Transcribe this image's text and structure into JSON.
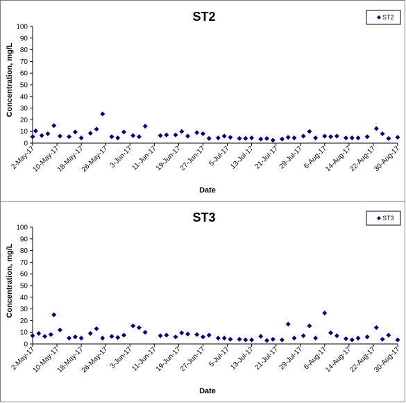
{
  "chart_data": [
    {
      "type": "scatter",
      "title": "ST2",
      "xlabel": "Date",
      "ylabel": "Concentration, mg/L",
      "ylim": [
        0,
        100
      ],
      "yticks": [
        "0",
        "10",
        "20",
        "30",
        "40",
        "50",
        "60",
        "70",
        "80",
        "90",
        "100"
      ],
      "xticks": [
        "2-May-17",
        "10-May-17",
        "18-May-17",
        "26-May-17",
        "3-Jun-17",
        "11-Jun-17",
        "19-Jun-17",
        "27-Jun-17",
        "5-Jul-17",
        "13-Jul-17",
        "21-Jul-17",
        "29-Jul-17",
        "6-Aug-17",
        "14-Aug-17",
        "22-Aug-17",
        "30-Aug-17"
      ],
      "legend": "top-right",
      "color": "#00007f",
      "series": [
        {
          "name": "ST2",
          "points": [
            [
              "2-May-17",
              5.5
            ],
            [
              "3-May-17",
              10.5
            ],
            [
              "5-May-17",
              6.5
            ],
            [
              "7-May-17",
              8
            ],
            [
              "9-May-17",
              15
            ],
            [
              "11-May-17",
              6
            ],
            [
              "14-May-17",
              5.5
            ],
            [
              "16-May-17",
              9.5
            ],
            [
              "18-May-17",
              4.5
            ],
            [
              "21-May-17",
              8.5
            ],
            [
              "23-May-17",
              12
            ],
            [
              "25-May-17",
              25
            ],
            [
              "28-May-17",
              5.5
            ],
            [
              "30-May-17",
              4.5
            ],
            [
              "1-Jun-17",
              9.5
            ],
            [
              "4-Jun-17",
              6.5
            ],
            [
              "6-Jun-17",
              5.5
            ],
            [
              "8-Jun-17",
              14.5
            ],
            [
              "13-Jun-17",
              6.5
            ],
            [
              "15-Jun-17",
              7
            ],
            [
              "18-Jun-17",
              7
            ],
            [
              "20-Jun-17",
              10
            ],
            [
              "22-Jun-17",
              6
            ],
            [
              "25-Jun-17",
              9
            ],
            [
              "27-Jun-17",
              8
            ],
            [
              "29-Jun-17",
              4
            ],
            [
              "2-Jul-17",
              4.5
            ],
            [
              "4-Jul-17",
              6
            ],
            [
              "6-Jul-17",
              5
            ],
            [
              "9-Jul-17",
              4
            ],
            [
              "11-Jul-17",
              4
            ],
            [
              "13-Jul-17",
              4.5
            ],
            [
              "16-Jul-17",
              3.5
            ],
            [
              "18-Jul-17",
              4
            ],
            [
              "20-Jul-17",
              2.5
            ],
            [
              "23-Jul-17",
              3.5
            ],
            [
              "25-Jul-17",
              5
            ],
            [
              "27-Jul-17",
              4.5
            ],
            [
              "30-Jul-17",
              6
            ],
            [
              "1-Aug-17",
              10
            ],
            [
              "3-Aug-17",
              4.5
            ],
            [
              "6-Aug-17",
              6
            ],
            [
              "8-Aug-17",
              5.5
            ],
            [
              "10-Aug-17",
              6
            ],
            [
              "13-Aug-17",
              4.5
            ],
            [
              "15-Aug-17",
              4.5
            ],
            [
              "17-Aug-17",
              4.5
            ],
            [
              "20-Aug-17",
              5.5
            ],
            [
              "23-Aug-17",
              12.5
            ],
            [
              "25-Aug-17",
              8
            ],
            [
              "27-Aug-17",
              4
            ],
            [
              "30-Aug-17",
              5
            ]
          ]
        }
      ]
    },
    {
      "type": "scatter",
      "title": "ST3",
      "xlabel": "Date",
      "ylabel": "Concentration, mg/L",
      "ylim": [
        0,
        100
      ],
      "yticks": [
        "0",
        "10",
        "20",
        "30",
        "40",
        "50",
        "60",
        "70",
        "80",
        "90",
        "100"
      ],
      "xticks": [
        "2-May-17",
        "10-May-17",
        "18-May-17",
        "26-May-17",
        "3-Jun-17",
        "11-Jun-17",
        "19-Jun-17",
        "27-Jun-17",
        "5-Jul-17",
        "13-Jul-17",
        "21-Jul-17",
        "29-Jul-17",
        "6-Aug-17",
        "14-Aug-17",
        "22-Aug-17",
        "30-Aug-17"
      ],
      "legend": "top-right",
      "color": "#00007f",
      "series": [
        {
          "name": "ST3",
          "points": [
            [
              "2-May-17",
              7
            ],
            [
              "4-May-17",
              9
            ],
            [
              "6-May-17",
              6.5
            ],
            [
              "8-May-17",
              8
            ],
            [
              "9-May-17",
              25
            ],
            [
              "11-May-17",
              12
            ],
            [
              "14-May-17",
              5
            ],
            [
              "16-May-17",
              6
            ],
            [
              "18-May-17",
              5
            ],
            [
              "21-May-17",
              9
            ],
            [
              "23-May-17",
              13
            ],
            [
              "25-May-17",
              5
            ],
            [
              "28-May-17",
              6.5
            ],
            [
              "30-May-17",
              5.5
            ],
            [
              "1-Jun-17",
              7.5
            ],
            [
              "4-Jun-17",
              15.5
            ],
            [
              "6-Jun-17",
              14
            ],
            [
              "8-Jun-17",
              10
            ],
            [
              "13-Jun-17",
              7
            ],
            [
              "15-Jun-17",
              7.5
            ],
            [
              "18-Jun-17",
              6
            ],
            [
              "20-Jun-17",
              9.5
            ],
            [
              "22-Jun-17",
              8.5
            ],
            [
              "25-Jun-17",
              8
            ],
            [
              "27-Jun-17",
              6
            ],
            [
              "29-Jun-17",
              7.5
            ],
            [
              "2-Jul-17",
              5
            ],
            [
              "4-Jul-17",
              5
            ],
            [
              "6-Jul-17",
              4
            ],
            [
              "9-Jul-17",
              4
            ],
            [
              "11-Jul-17",
              3.5
            ],
            [
              "13-Jul-17",
              3.5
            ],
            [
              "16-Jul-17",
              6.5
            ],
            [
              "18-Jul-17",
              3
            ],
            [
              "20-Jul-17",
              4
            ],
            [
              "23-Jul-17",
              3.5
            ],
            [
              "25-Jul-17",
              17
            ],
            [
              "27-Jul-17",
              5
            ],
            [
              "30-Jul-17",
              7
            ],
            [
              "1-Aug-17",
              15.5
            ],
            [
              "3-Aug-17",
              5
            ],
            [
              "6-Aug-17",
              26.5
            ],
            [
              "8-Aug-17",
              9.5
            ],
            [
              "10-Aug-17",
              7
            ],
            [
              "13-Aug-17",
              4.5
            ],
            [
              "15-Aug-17",
              3.5
            ],
            [
              "17-Aug-17",
              5
            ],
            [
              "20-Aug-17",
              6
            ],
            [
              "23-Aug-17",
              14
            ],
            [
              "25-Aug-17",
              4
            ],
            [
              "27-Aug-17",
              7.5
            ],
            [
              "30-Aug-17",
              3.5
            ]
          ]
        }
      ]
    }
  ]
}
